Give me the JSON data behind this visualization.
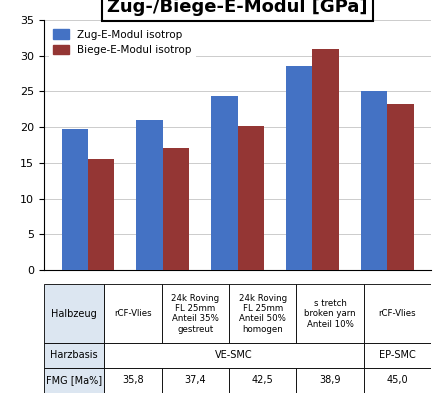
{
  "title": "Zug-/Biege-E-Modul [GPa]",
  "categories": [
    "rCF-Vlies",
    "24k Roving\nFL 25mm\nAnteil 35%\ngestreut",
    "24k Roving\nFL 25mm\nAnteil 50%\nhomogen",
    "s tretch\nbroken yarn\nAnteil 10%",
    "rCF-Vlies"
  ],
  "zug_values": [
    19.7,
    21.0,
    24.4,
    28.6,
    25.1
  ],
  "biege_values": [
    15.5,
    17.1,
    20.2,
    31.0,
    23.2
  ],
  "zug_color": "#4472C4",
  "biege_color": "#943634",
  "legend_zug": "Zug-E-Modul isotrop",
  "legend_biege": "Biege-E-Modul isotrop",
  "ylim": [
    0,
    35
  ],
  "yticks": [
    0,
    5,
    10,
    15,
    20,
    25,
    30,
    35
  ],
  "bar_width": 0.35,
  "table_col0_header": "Halbzeug",
  "table_data_headers": [
    "rCF-Vlies",
    "24k Roving\nFL 25mm\nAnteil 35%\ngestreut",
    "24k Roving\nFL 25mm\nAnteil 50%\nhomogen",
    "s tretch\nbroken yarn\nAnteil 10%",
    "rCF-Vlies"
  ],
  "row_harzbasis_label": "Harzbasis",
  "row_fmg_label": "FMG [Ma%]",
  "row_fmg_values": [
    "35,8",
    "37,4",
    "42,5",
    "38,9",
    "45,0"
  ],
  "header_bg": "#DCE6F1",
  "label_bg": "#DCE6F1",
  "white_bg": "#FFFFFF",
  "table_border_color": "#000000",
  "bg_color": "#FFFFFF"
}
